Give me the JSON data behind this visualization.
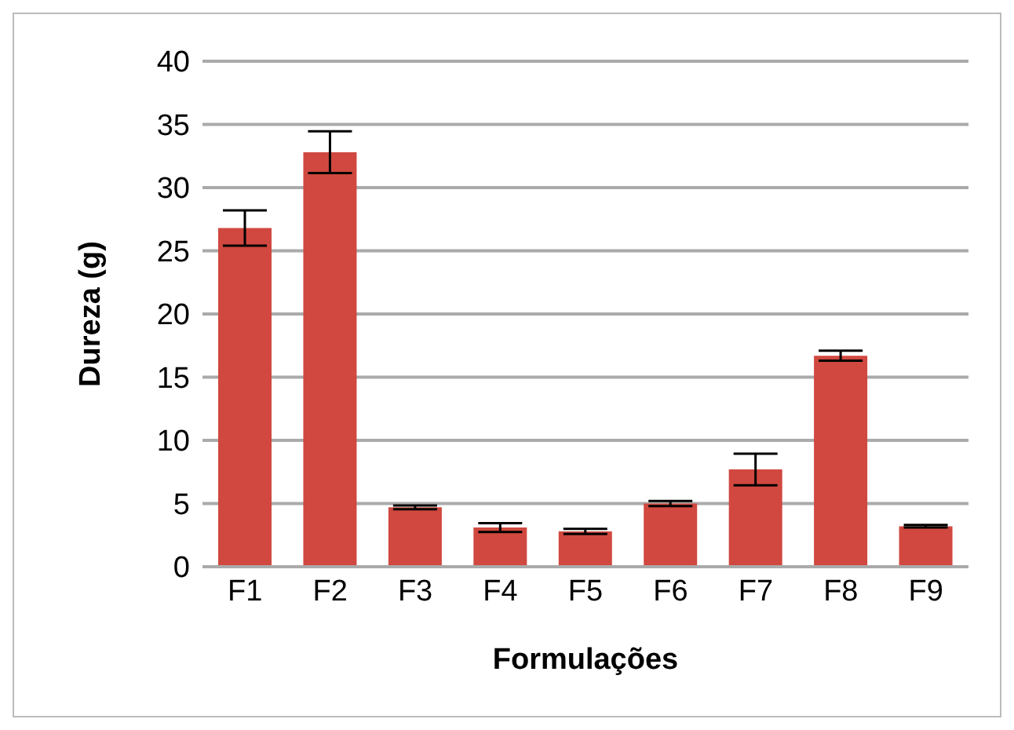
{
  "chart_data": {
    "type": "bar",
    "xlabel": "Formulações",
    "ylabel": "Dureza (g)",
    "categories": [
      "F1",
      "F2",
      "F3",
      "F4",
      "F5",
      "F6",
      "F7",
      "F8",
      "F9"
    ],
    "values": [
      26.8,
      32.8,
      4.7,
      3.1,
      2.8,
      5.0,
      7.7,
      16.7,
      3.2
    ],
    "errors": [
      1.4,
      1.65,
      0.15,
      0.35,
      0.2,
      0.2,
      1.25,
      0.4,
      0.1
    ],
    "color": "#d0483f",
    "ylim": [
      0,
      40
    ],
    "yticks": [
      0,
      5,
      10,
      15,
      20,
      25,
      30,
      35,
      40
    ],
    "grid": "y",
    "legend": false
  }
}
